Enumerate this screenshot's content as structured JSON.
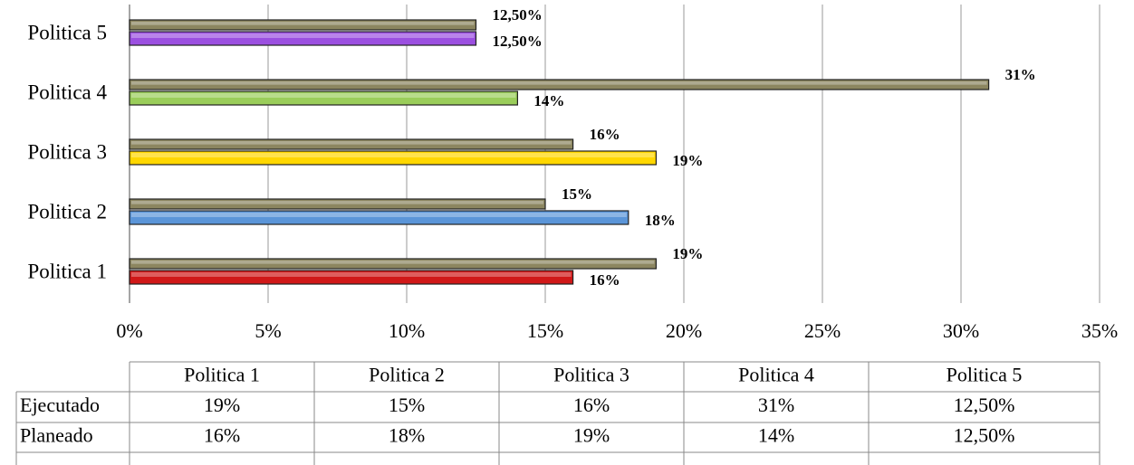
{
  "chart_data": {
    "type": "barh",
    "categories": [
      "Politica 1",
      "Politica 2",
      "Politica 3",
      "Politica 4",
      "Politica 5"
    ],
    "series": [
      {
        "name": "Ejecutado",
        "color": "#8c8660",
        "values": [
          19,
          15,
          16,
          31,
          12.5
        ],
        "value_labels": [
          "19%",
          "15%",
          "16%",
          "31%",
          "12,50%"
        ]
      },
      {
        "name": "Planeado",
        "colors": [
          "#d01818",
          "#5b95d8",
          "#ffd700",
          "#9acd5a",
          "#9b4fe0"
        ],
        "values": [
          16,
          18,
          19,
          14,
          12.5
        ],
        "value_labels": [
          "16%",
          "18%",
          "19%",
          "14%",
          "12,50%"
        ]
      }
    ],
    "xlim": [
      0,
      35
    ],
    "xticks": [
      {
        "value": 0,
        "label": "0%"
      },
      {
        "value": 5,
        "label": "5%"
      },
      {
        "value": 10,
        "label": "10%"
      },
      {
        "value": 15,
        "label": "15%"
      },
      {
        "value": 20,
        "label": "20%"
      },
      {
        "value": 25,
        "label": "25%"
      },
      {
        "value": 30,
        "label": "30%"
      },
      {
        "value": 35,
        "label": "35%"
      }
    ],
    "grid": true,
    "data_table": true
  }
}
